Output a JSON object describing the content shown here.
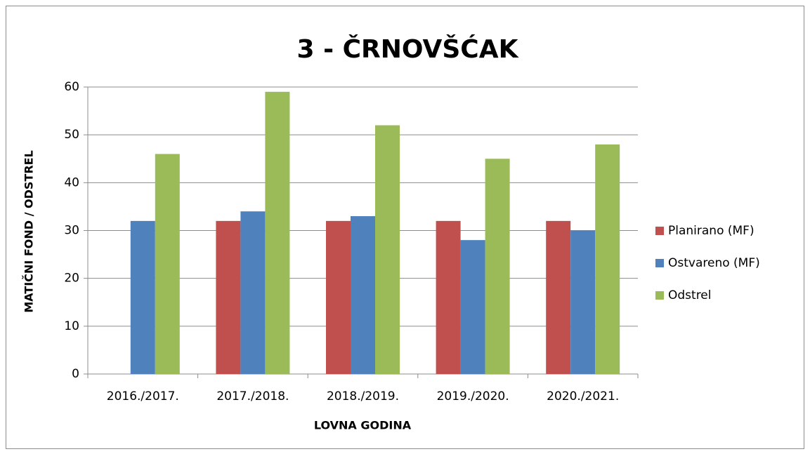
{
  "chart_data": {
    "type": "bar",
    "title": "3 - ČRNOVŠĆAK",
    "x_label": "LOVNA GODINA",
    "y_label": "MATIČNI FOND / ODSTREL",
    "categories": [
      "2016./2017.",
      "2017./2018.",
      "2018./2019.",
      "2019./2020.",
      "2020./2021."
    ],
    "series": [
      {
        "name": "Planirano (MF)",
        "color": "#c0504d",
        "values": [
          null,
          32,
          32,
          32,
          32
        ]
      },
      {
        "name": "Ostvareno (MF)",
        "color": "#4f81bd",
        "values": [
          32,
          34,
          33,
          28,
          30
        ]
      },
      {
        "name": "Odstrel",
        "color": "#9bbb59",
        "values": [
          46,
          59,
          52,
          45,
          48
        ]
      }
    ],
    "ylim": [
      0,
      60
    ],
    "yticks": [
      0,
      10,
      20,
      30,
      40,
      50,
      60
    ],
    "grid": true,
    "legend": "right"
  }
}
